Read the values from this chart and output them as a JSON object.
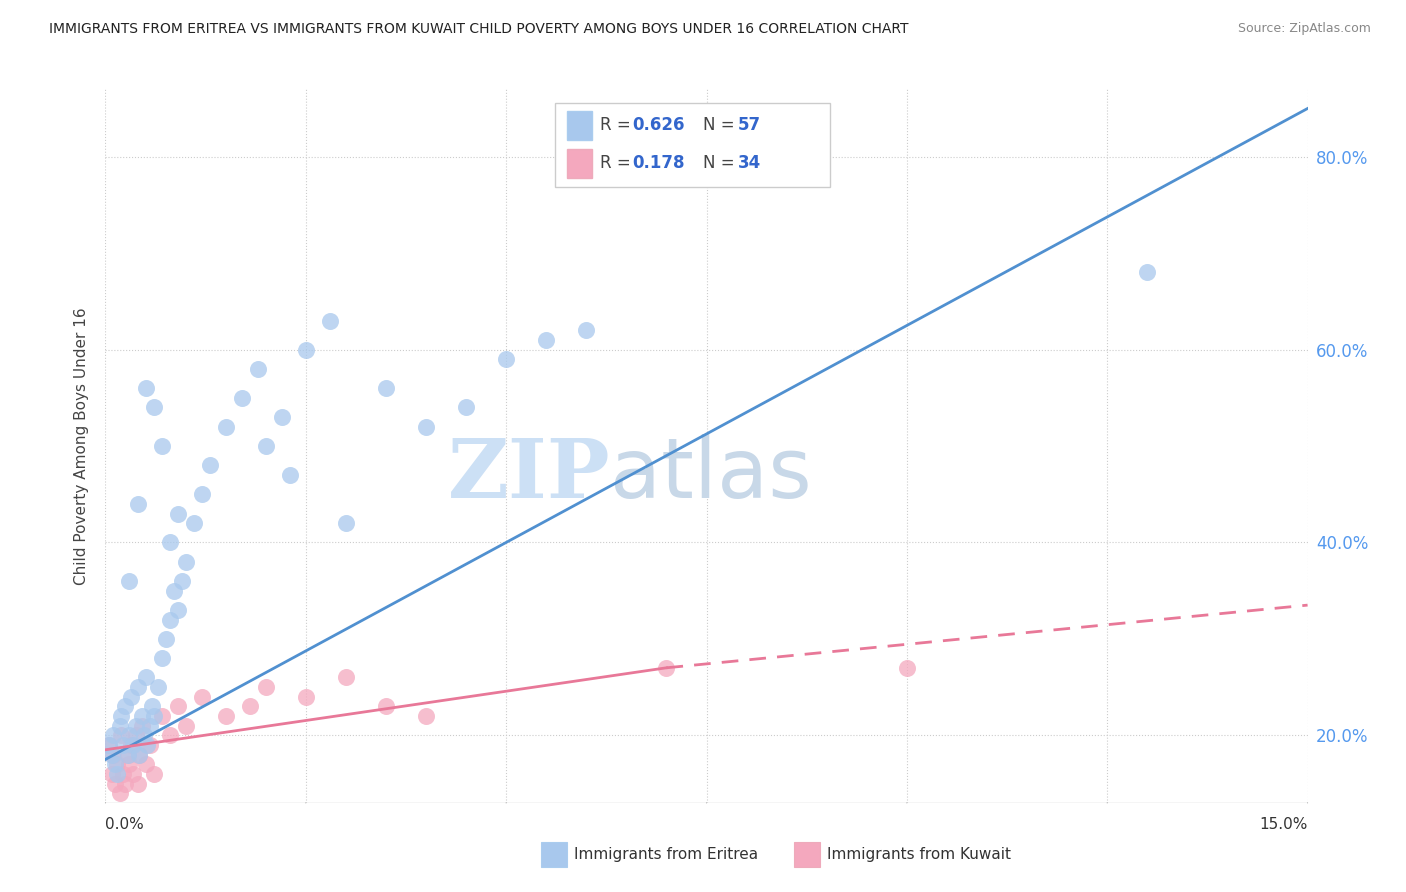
{
  "title": "IMMIGRANTS FROM ERITREA VS IMMIGRANTS FROM KUWAIT CHILD POVERTY AMONG BOYS UNDER 16 CORRELATION CHART",
  "source": "Source: ZipAtlas.com",
  "ylabel": "Child Poverty Among Boys Under 16",
  "xlim": [
    0.0,
    15.0
  ],
  "ylim": [
    13.0,
    87.0
  ],
  "yticks": [
    20.0,
    40.0,
    60.0,
    80.0
  ],
  "ytick_labels": [
    "20.0%",
    "40.0%",
    "60.0%",
    "80.0%"
  ],
  "legend_eritrea_R": "0.626",
  "legend_eritrea_N": "57",
  "legend_kuwait_R": "0.178",
  "legend_kuwait_N": "34",
  "eritrea_color": "#a8c8ed",
  "kuwait_color": "#f4a8be",
  "eritrea_line_color": "#5090d0",
  "kuwait_line_color": "#e87898",
  "watermark_zip": "ZIP",
  "watermark_atlas": "atlas",
  "background_color": "#ffffff",
  "eritrea_scatter_x": [
    0.05,
    0.08,
    0.1,
    0.12,
    0.15,
    0.18,
    0.2,
    0.22,
    0.25,
    0.28,
    0.3,
    0.32,
    0.35,
    0.38,
    0.4,
    0.42,
    0.45,
    0.48,
    0.5,
    0.52,
    0.55,
    0.58,
    0.6,
    0.65,
    0.7,
    0.75,
    0.8,
    0.85,
    0.9,
    0.95,
    1.0,
    1.1,
    1.2,
    1.3,
    1.5,
    1.7,
    1.9,
    2.0,
    2.2,
    2.5,
    2.8,
    3.0,
    3.5,
    4.0,
    4.5,
    5.0,
    5.5,
    6.0,
    2.3,
    0.4,
    0.6,
    0.7,
    0.3,
    0.5,
    0.8,
    0.9,
    13.0
  ],
  "eritrea_scatter_y": [
    19,
    18,
    20,
    17,
    16,
    21,
    22,
    19,
    23,
    18,
    20,
    24,
    19,
    21,
    25,
    18,
    22,
    20,
    26,
    19,
    21,
    23,
    22,
    25,
    28,
    30,
    32,
    35,
    33,
    36,
    38,
    42,
    45,
    48,
    52,
    55,
    58,
    50,
    53,
    60,
    63,
    42,
    56,
    52,
    54,
    59,
    61,
    62,
    47,
    44,
    54,
    50,
    36,
    56,
    40,
    43,
    68
  ],
  "kuwait_scatter_x": [
    0.05,
    0.08,
    0.1,
    0.12,
    0.15,
    0.18,
    0.2,
    0.22,
    0.25,
    0.28,
    0.3,
    0.32,
    0.35,
    0.38,
    0.4,
    0.42,
    0.45,
    0.5,
    0.55,
    0.6,
    0.7,
    0.8,
    0.9,
    1.0,
    1.2,
    1.5,
    1.8,
    2.0,
    2.5,
    3.0,
    3.5,
    4.0,
    7.0,
    10.0
  ],
  "kuwait_scatter_y": [
    19,
    16,
    18,
    15,
    17,
    14,
    20,
    16,
    15,
    18,
    17,
    19,
    16,
    20,
    15,
    18,
    21,
    17,
    19,
    16,
    22,
    20,
    23,
    21,
    24,
    22,
    23,
    25,
    24,
    26,
    23,
    22,
    27,
    27
  ],
  "eritrea_line_x0": 0.0,
  "eritrea_line_y0": 17.5,
  "eritrea_line_x1": 15.0,
  "eritrea_line_y1": 85.0,
  "kuwait_line_x0": 0.0,
  "kuwait_line_y0": 18.5,
  "kuwait_line_x1_solid": 7.0,
  "kuwait_line_y1_solid": 27.0,
  "kuwait_line_x1_dash": 15.0,
  "kuwait_line_y1_dash": 33.5
}
